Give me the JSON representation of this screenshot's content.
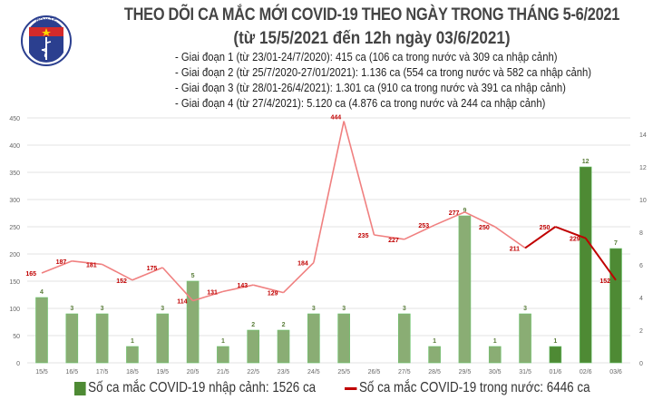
{
  "header": {
    "logo_text": "BỘ Y TẾ",
    "logo_subtext": "MINISTRY OF HEALTH",
    "title": "THEO DÕI CA MẮC MỚI COVID-19 THEO NGÀY TRONG THÁNG 5-6/2021",
    "subtitle": "(từ 15/5/2021 đến 12h ngày 03/6/2021)",
    "stages": [
      "- Giai đoạn 1 (từ 23/01-24/7/2020): 415 ca (106 ca trong nước và 309 ca nhập cảnh)",
      "- Giai đoạn 2 (từ 25/7/2020-27/01/2021): 1.136 ca (554 ca trong nước và 582 ca nhập cảnh)",
      "- Giai đoạn 3 (từ 28/01-26/4/2021): 1.301 ca (910 ca trong nước và 391 ca nhập cảnh)",
      "- Giai đoạn 4 (từ 27/4/2021): 5.120 ca (4.876 ca trong nước và 244 ca nhập cảnh)"
    ]
  },
  "chart_data": {
    "type": "bar+line",
    "categories": [
      "15/5",
      "16/5",
      "17/5",
      "18/5",
      "19/5",
      "20/5",
      "21/5",
      "22/5",
      "23/5",
      "24/5",
      "25/5",
      "26/5",
      "27/5",
      "28/5",
      "29/5",
      "30/5",
      "31/5",
      "01/6",
      "02/6",
      "03/6"
    ],
    "series": [
      {
        "name": "Số ca mắc COVID-19 nhập cảnh: 1526 ca",
        "type": "bar",
        "axis": "right",
        "values": [
          4,
          3,
          3,
          1,
          3,
          5,
          1,
          2,
          2,
          3,
          3,
          0,
          3,
          1,
          9,
          1,
          3,
          1,
          12,
          7
        ],
        "color": "#8aad74",
        "highlight_color": "#4e8a34",
        "highlight_from": "01/6"
      },
      {
        "name": "Số ca mắc COVID-19 trong nước: 6446 ca",
        "type": "line",
        "axis": "left",
        "values": [
          165,
          187,
          181,
          152,
          175,
          114,
          131,
          143,
          129,
          184,
          444,
          235,
          227,
          253,
          277,
          250,
          211,
          250,
          229,
          152
        ],
        "color": "#f08080",
        "highlight_color": "#c00000",
        "highlight_from": "31/5"
      }
    ],
    "left_axis": {
      "ylim": [
        0,
        450
      ],
      "ticks": [
        0,
        50,
        100,
        150,
        200,
        250,
        300,
        350,
        400,
        450
      ]
    },
    "right_axis": {
      "ylim": [
        0,
        15
      ],
      "ticks": [
        0,
        2,
        4,
        6,
        8,
        10,
        12,
        14
      ]
    },
    "grid": true,
    "legend_position": "bottom",
    "label_colors": {
      "bar": "#5a7d3a",
      "line": "#c00000"
    }
  }
}
